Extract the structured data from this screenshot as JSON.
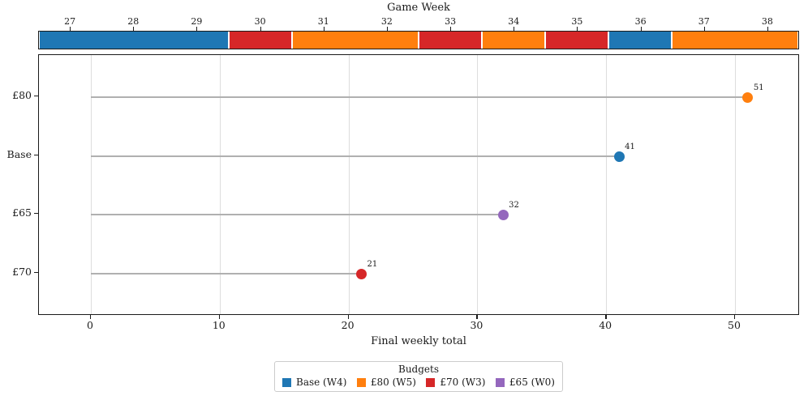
{
  "chart_data": {
    "type": "lollipop",
    "top_axis": {
      "title": "Game Week",
      "ticks": [
        27,
        28,
        29,
        30,
        31,
        32,
        33,
        34,
        35,
        36,
        37,
        38
      ],
      "range": [
        26.5,
        38.5
      ],
      "segments": [
        {
          "start": 26.5,
          "end": 29.5,
          "budget": "Base"
        },
        {
          "start": 29.5,
          "end": 30.5,
          "budget": "£70"
        },
        {
          "start": 30.5,
          "end": 32.5,
          "budget": "£80"
        },
        {
          "start": 32.5,
          "end": 33.5,
          "budget": "£70"
        },
        {
          "start": 33.5,
          "end": 34.5,
          "budget": "£80"
        },
        {
          "start": 34.5,
          "end": 35.5,
          "budget": "£70"
        },
        {
          "start": 35.5,
          "end": 36.5,
          "budget": "Base"
        },
        {
          "start": 36.5,
          "end": 38.5,
          "budget": "£80"
        }
      ]
    },
    "rows": [
      {
        "label": "£80",
        "value": 51,
        "budget": "£80"
      },
      {
        "label": "Base",
        "value": 41,
        "budget": "Base"
      },
      {
        "label": "£65",
        "value": 32,
        "budget": "£65"
      },
      {
        "label": "£70",
        "value": 21,
        "budget": "£70"
      }
    ],
    "xlabel": "Final weekly total",
    "x_ticks": [
      0,
      10,
      20,
      30,
      40,
      50
    ],
    "xlim": [
      -4,
      55
    ],
    "grid": true,
    "legend": {
      "title": "Budgets",
      "entries": [
        {
          "label": "Base (W4)",
          "budget": "Base"
        },
        {
          "label": "£80 (W5)",
          "budget": "£80"
        },
        {
          "label": "£70 (W3)",
          "budget": "£70"
        },
        {
          "label": "£65 (W0)",
          "budget": "£65"
        }
      ]
    },
    "colors": {
      "Base": "#1f77b4",
      "£80": "#ff7f0e",
      "£70": "#d62728",
      "£65": "#9467bd",
      "stem": "#b0b0b0",
      "grid": "#dddddd",
      "spine": "#1a1a1a",
      "value_label": "#1a1a1a"
    }
  }
}
